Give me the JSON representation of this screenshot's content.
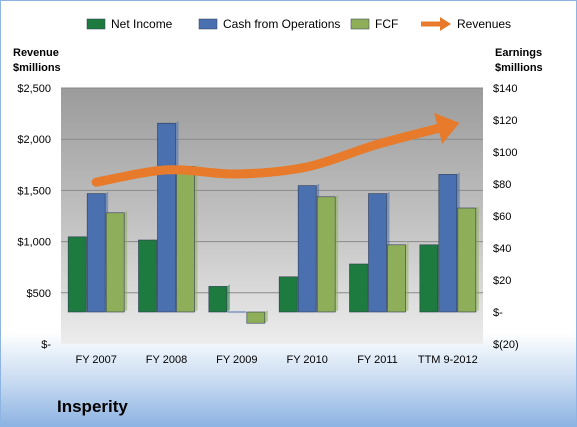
{
  "company_name": "Insperity",
  "chart_data": {
    "type": "bar",
    "categories": [
      "FY 2007",
      "FY 2008",
      "FY 2009",
      "FY 2010",
      "FY 2011",
      "TTM 9-2012"
    ],
    "series": [
      {
        "name": "Net Income",
        "axis": "right",
        "kind": "bar",
        "color": "#1e7b3f",
        "values": [
          47,
          45,
          16,
          22,
          30,
          42
        ]
      },
      {
        "name": "Cash from Operations",
        "axis": "right",
        "kind": "bar",
        "color": "#4a70b0",
        "values": [
          74,
          118,
          0,
          79,
          74,
          86
        ]
      },
      {
        "name": "FCF",
        "axis": "right",
        "kind": "bar",
        "color": "#8fae5a",
        "values": [
          62,
          91,
          -7,
          72,
          42,
          65
        ]
      },
      {
        "name": "Revenues",
        "axis": "left",
        "kind": "line",
        "color": "#e77b2b",
        "values": [
          1580,
          1700,
          1660,
          1730,
          1950,
          2130
        ]
      }
    ],
    "left_axis": {
      "title": [
        "Revenue",
        "$millions"
      ],
      "ylim": [
        0,
        2500
      ],
      "ticks": [
        0,
        500,
        1000,
        1500,
        2000,
        2500
      ],
      "tick_labels": [
        "$-",
        "$500",
        "$1,000",
        "$1,500",
        "$2,000",
        "$2,500"
      ]
    },
    "right_axis": {
      "title": [
        "Earnings",
        "$millions"
      ],
      "ylim": [
        -20,
        140
      ],
      "ticks": [
        -20,
        0,
        20,
        40,
        60,
        80,
        100,
        120,
        140
      ],
      "tick_labels": [
        "$(20)",
        "$-",
        "$20",
        "$40",
        "$60",
        "$80",
        "$100",
        "$120",
        "$140"
      ]
    },
    "legend_position": "top",
    "grid": true
  }
}
